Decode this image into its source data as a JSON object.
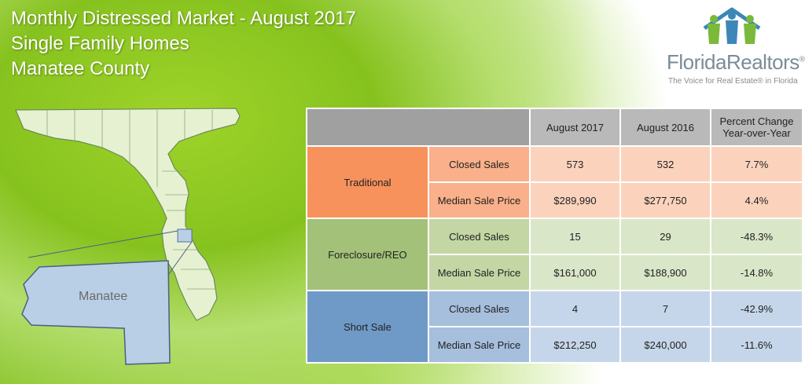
{
  "header": {
    "title_line1": "Monthly Distressed Market - August 2017",
    "title_line2": "Single Family Homes",
    "title_line3": "Manatee County"
  },
  "logo": {
    "name": "FloridaRealtors",
    "registered_mark": "®",
    "tagline": "The Voice for Real Estate® in Florida"
  },
  "map": {
    "county_label": "Manatee",
    "county_color": "#b9cfe6",
    "state_color": "#e6f1d2"
  },
  "chart_data": {
    "type": "table",
    "columns": [
      "August 2017",
      "August 2016",
      "Percent Change Year-over-Year"
    ],
    "column_header_line1": "Percent Change",
    "column_header_line2": "Year-over-Year",
    "rows": [
      {
        "category": "Traditional",
        "metric": "Closed Sales",
        "aug2017": "573",
        "aug2016": "532",
        "change": "7.7%"
      },
      {
        "category": "Traditional",
        "metric": "Median Sale Price",
        "aug2017": "$289,990",
        "aug2016": "$277,750",
        "change": "4.4%"
      },
      {
        "category": "Foreclosure/REO",
        "metric": "Closed Sales",
        "aug2017": "15",
        "aug2016": "29",
        "change": "-48.3%"
      },
      {
        "category": "Foreclosure/REO",
        "metric": "Median Sale Price",
        "aug2017": "$161,000",
        "aug2016": "$188,900",
        "change": "-14.8%"
      },
      {
        "category": "Short Sale",
        "metric": "Closed Sales",
        "aug2017": "4",
        "aug2016": "7",
        "change": "-42.9%"
      },
      {
        "category": "Short Sale",
        "metric": "Median Sale Price",
        "aug2017": "$212,250",
        "aug2016": "$240,000",
        "change": "-11.6%"
      }
    ],
    "category_colors": {
      "Traditional": "#f7925d",
      "Foreclosure/REO": "#a3c178",
      "Short Sale": "#6f9ac7"
    }
  }
}
